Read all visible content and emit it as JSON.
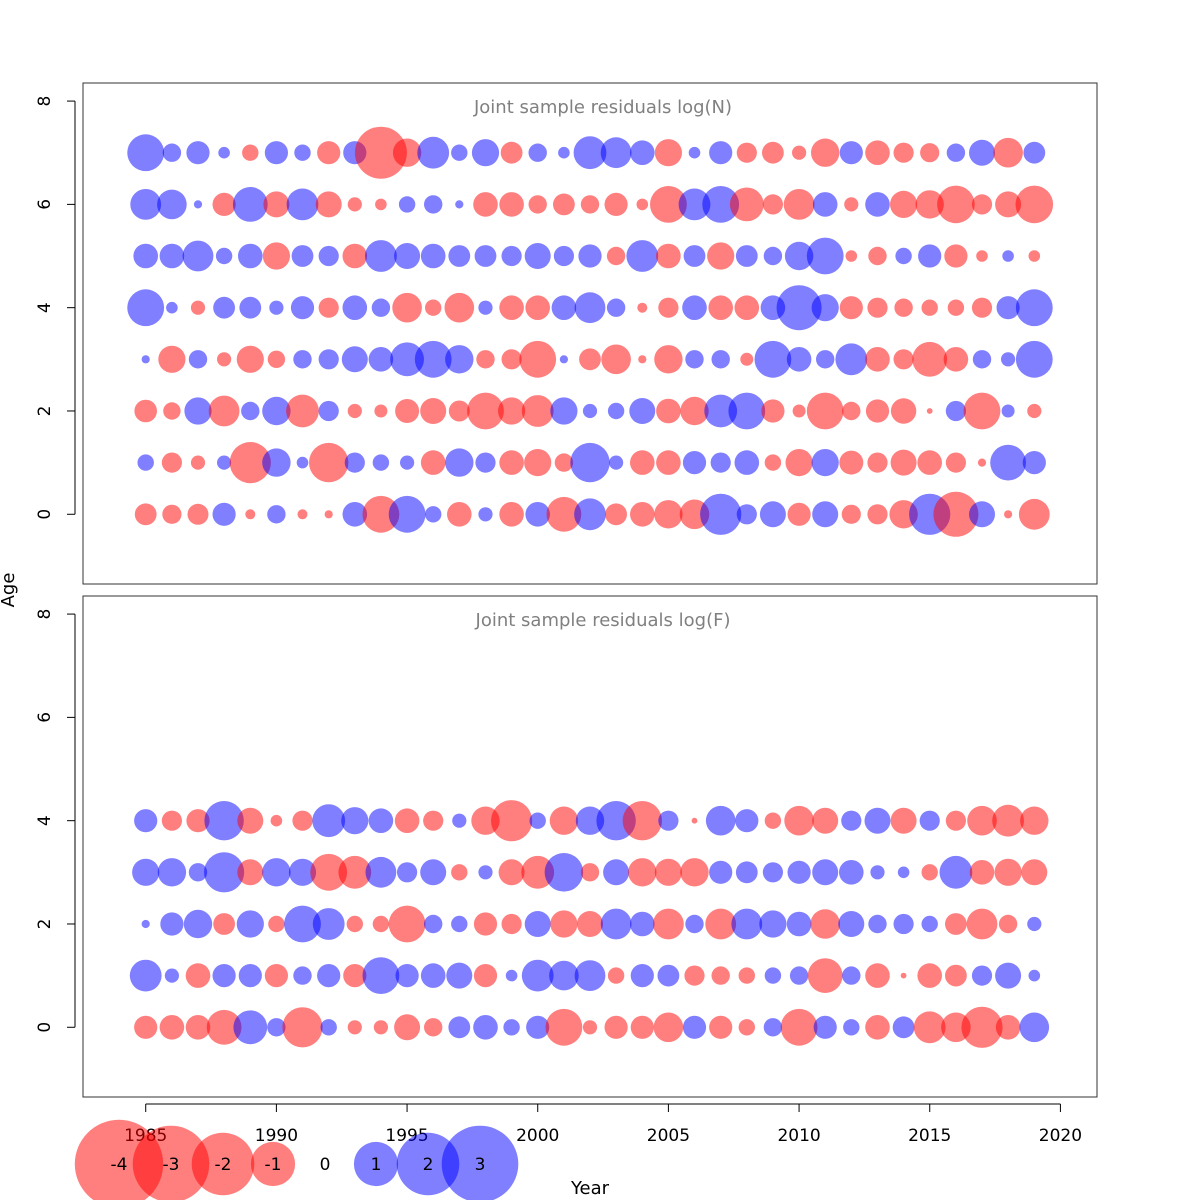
{
  "chart_data": {
    "type": "scatter",
    "xlabel": "Year",
    "ylabel": "Age",
    "xticks": [
      1985,
      1990,
      1995,
      2000,
      2005,
      2010,
      2015,
      2020
    ],
    "yticks": [
      0,
      2,
      4,
      6,
      8
    ],
    "xlim": [
      1982.6,
      2021.4
    ],
    "ylim": [
      -1.35,
      8.35
    ],
    "colors": {
      "negative": "#ff0000",
      "positive": "#0000ff"
    },
    "legend": {
      "placement": "bottom",
      "values": [
        -4,
        -3,
        -2,
        -1,
        0,
        1,
        2,
        3
      ],
      "labels": [
        "-4",
        "-3",
        "-2",
        "-1",
        "0",
        "1",
        "2",
        "3"
      ]
    },
    "years": [
      1985,
      1986,
      1987,
      1988,
      1989,
      1990,
      1991,
      1992,
      1993,
      1994,
      1995,
      1996,
      1997,
      1998,
      1999,
      2000,
      2001,
      2002,
      2003,
      2004,
      2005,
      2006,
      2007,
      2008,
      2009,
      2010,
      2011,
      2012,
      2013,
      2014,
      2015,
      2016,
      2017,
      2018,
      2019
    ],
    "panels": [
      {
        "title": "Joint sample residuals log(N)",
        "ages": [
          0,
          1,
          2,
          3,
          4,
          5,
          6,
          7
        ],
        "residuals": [
          [
            -0.7,
            -0.55,
            -0.65,
            0.8,
            -0.15,
            0.5,
            -0.15,
            -0.1,
            0.9,
            -2.0,
            2.0,
            0.4,
            -0.9,
            0.3,
            -0.9,
            0.9,
            -1.8,
            1.5,
            -0.7,
            -0.9,
            -1.2,
            -1.3,
            2.5,
            0.6,
            1.0,
            -0.8,
            1.0,
            -0.55,
            -0.6,
            -1.2,
            2.5,
            -3.0,
            1.0,
            -0.1,
            -1.4
          ],
          [
            0.4,
            -0.6,
            -0.3,
            0.3,
            -2.5,
            1.2,
            0.2,
            -2.3,
            0.6,
            0.4,
            0.3,
            -0.9,
            1.2,
            0.6,
            -0.9,
            -1.1,
            -0.5,
            2.3,
            0.3,
            -0.9,
            -0.9,
            0.8,
            0.6,
            0.9,
            -0.4,
            -1.1,
            1.1,
            -0.85,
            -0.6,
            -1.0,
            -0.9,
            -0.6,
            -0.1,
            1.9,
            0.8
          ],
          [
            -0.75,
            -0.45,
            1.1,
            -1.4,
            0.5,
            1.2,
            -1.6,
            0.6,
            -0.3,
            -0.25,
            -0.85,
            -1.0,
            -0.65,
            -2.0,
            -1.1,
            -1.5,
            1.1,
            0.3,
            0.4,
            1.0,
            -0.9,
            -1.2,
            1.6,
            2.0,
            -0.8,
            -0.25,
            -2.0,
            -0.5,
            -0.8,
            -0.95,
            -0.05,
            0.6,
            -2.0,
            0.25,
            -0.3
          ],
          [
            0.1,
            -1.1,
            0.5,
            -0.3,
            -1.1,
            -0.45,
            0.5,
            0.6,
            1.0,
            0.9,
            1.7,
            2.0,
            1.2,
            -0.5,
            -0.6,
            -2.0,
            0.1,
            -0.7,
            -1.3,
            -0.1,
            -1.2,
            0.5,
            0.5,
            -0.25,
            2.0,
            0.9,
            0.5,
            1.5,
            -0.9,
            -0.6,
            -1.8,
            -0.9,
            0.5,
            0.3,
            2.0
          ],
          [
            2.0,
            0.2,
            -0.3,
            0.7,
            0.7,
            0.3,
            0.8,
            -0.6,
            0.9,
            0.5,
            -1.3,
            -0.4,
            -1.3,
            0.3,
            -0.9,
            -0.9,
            0.9,
            1.4,
            0.5,
            -0.15,
            -0.6,
            0.9,
            -0.9,
            -0.9,
            0.9,
            3.0,
            1.1,
            -0.8,
            -0.6,
            -0.5,
            -0.4,
            -0.4,
            -0.6,
            0.8,
            2.0
          ],
          [
            0.9,
            0.9,
            1.4,
            0.4,
            0.9,
            -1.1,
            0.7,
            0.6,
            -0.9,
            1.5,
            1.0,
            0.9,
            0.7,
            0.7,
            0.6,
            1.0,
            0.6,
            0.8,
            -0.5,
            1.5,
            -0.9,
            0.7,
            -1.1,
            0.7,
            0.5,
            1.2,
            2.0,
            -0.2,
            -0.5,
            0.4,
            0.8,
            -0.8,
            -0.2,
            0.2,
            -0.2
          ],
          [
            1.4,
            1.3,
            0.1,
            -0.8,
            1.8,
            -1.0,
            1.5,
            -1.0,
            -0.3,
            -0.2,
            0.4,
            0.5,
            0.1,
            -0.9,
            -0.9,
            -0.5,
            -0.7,
            -0.5,
            -0.8,
            -0.2,
            -2.0,
            1.5,
            2.0,
            -1.7,
            -0.6,
            -1.4,
            0.9,
            -0.3,
            0.9,
            -1.1,
            -1.2,
            -2.1,
            -0.6,
            -1.0,
            -2.1
          ],
          [
            2.0,
            0.5,
            0.8,
            0.2,
            -0.4,
            0.8,
            0.4,
            -0.8,
            0.8,
            -4.0,
            -1.2,
            1.5,
            0.4,
            1.1,
            -0.7,
            0.5,
            0.2,
            1.6,
            1.4,
            0.9,
            -1.1,
            0.2,
            0.8,
            -0.6,
            -0.7,
            -0.3,
            -1.2,
            0.8,
            -0.9,
            -0.6,
            -0.55,
            0.5,
            1.0,
            -1.3,
            0.7
          ]
        ]
      },
      {
        "title": "Joint sample residuals log(F)",
        "ages": [
          0,
          1,
          2,
          3,
          4
        ],
        "residuals": [
          [
            -0.8,
            -0.9,
            -0.9,
            -1.8,
            1.7,
            0.5,
            -2.4,
            0.4,
            -0.3,
            -0.3,
            -1.0,
            -0.5,
            0.7,
            0.9,
            0.4,
            0.8,
            -2.0,
            -0.3,
            -0.8,
            -0.8,
            -1.3,
            0.8,
            -0.8,
            -0.4,
            0.5,
            -2.0,
            0.8,
            0.4,
            -0.9,
            0.7,
            -1.5,
            -1.3,
            -2.5,
            -0.9,
            1.3
          ],
          [
            1.5,
            0.3,
            -0.9,
            0.8,
            0.8,
            -0.8,
            0.5,
            0.8,
            -0.8,
            2.0,
            0.8,
            0.9,
            1.0,
            -0.8,
            0.2,
            1.5,
            1.3,
            1.4,
            -0.4,
            0.8,
            0.7,
            -0.6,
            -0.5,
            -0.4,
            0.4,
            0.5,
            -1.8,
            0.5,
            -0.9,
            -0.05,
            -0.9,
            -0.7,
            0.6,
            1.0,
            0.2
          ],
          [
            0.1,
            0.8,
            1.2,
            -0.7,
            1.1,
            -0.4,
            2.0,
            1.5,
            -0.4,
            -0.4,
            -2.0,
            0.5,
            0.4,
            -0.8,
            -0.6,
            1.0,
            -1.1,
            -1.0,
            1.4,
            0.9,
            -1.4,
            0.5,
            -1.4,
            1.4,
            1.1,
            0.9,
            -1.3,
            1.0,
            0.5,
            0.6,
            0.4,
            -0.7,
            -1.4,
            -0.5,
            0.3
          ],
          [
            1.1,
            1.2,
            0.5,
            2.4,
            -1.0,
            1.2,
            1.1,
            -2.0,
            -1.6,
            1.4,
            0.6,
            1.0,
            -0.4,
            0.3,
            -1.0,
            -1.6,
            2.2,
            -0.5,
            1.0,
            -1.2,
            -1.1,
            -1.2,
            0.8,
            0.7,
            0.6,
            0.8,
            1.0,
            0.9,
            0.3,
            0.2,
            -0.4,
            1.6,
            -0.9,
            -1.1,
            -1.0
          ],
          [
            0.8,
            -0.6,
            -0.8,
            2.3,
            -1.0,
            -0.2,
            -0.6,
            1.6,
            1.1,
            0.9,
            -0.9,
            -0.6,
            0.3,
            -1.2,
            -2.5,
            0.4,
            -1.2,
            1.2,
            2.3,
            -2.3,
            0.6,
            -0.05,
            1.3,
            0.8,
            -0.4,
            -1.3,
            -1.0,
            0.6,
            1.0,
            -1.0,
            0.6,
            -0.6,
            -1.3,
            -1.5,
            -1.2
          ]
        ]
      }
    ]
  }
}
